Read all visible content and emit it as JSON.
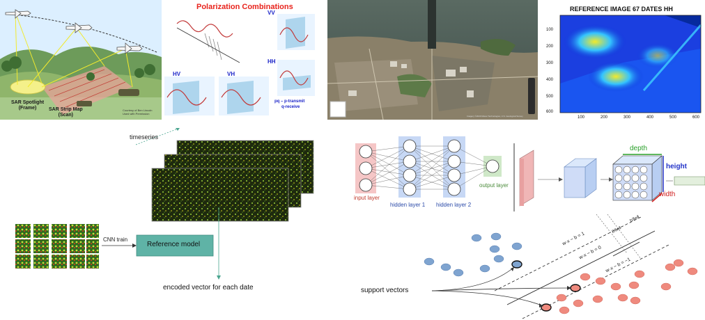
{
  "sar": {
    "spotlight_label_1": "SAR Spotlight",
    "spotlight_label_2": "(Frame)",
    "strip_label_1": "SAR Strip Map",
    "strip_label_2": "(Scan)",
    "credit_1": "Courtesy of Ben Lincoln",
    "credit_2": "Used with Permission"
  },
  "polarization": {
    "title": "Polarization Combinations",
    "labels": [
      "VV",
      "HH",
      "HV",
      "VH"
    ],
    "note_1": "pq – p-transmit",
    "note_2": "q-receive",
    "title_color": "#e8231c",
    "label_color": "#1a23c8"
  },
  "satellite": {
    "attribution": "Imagery ©2020 Maxar Technologies, U.S. Geological Survey"
  },
  "reference": {
    "title": "REFERENCE IMAGE 67 DATES HH",
    "y_ticks": [
      "100",
      "200",
      "300",
      "400",
      "500",
      "600"
    ],
    "x_ticks": [
      "100",
      "200",
      "300",
      "400",
      "500",
      "600"
    ]
  },
  "workflow": {
    "timeseries_label": "timeseries",
    "cnn_train_label": "CNN train",
    "reference_model_label": "Reference model",
    "encoded_vector_label": "encoded vector for each date",
    "model_box_color": "#5fb3a6"
  },
  "network": {
    "input_layer_label": "input layer",
    "hidden_layer_1_label": "hidden layer 1",
    "hidden_layer_2_label": "hidden layer 2",
    "output_layer_label": "output layer",
    "depth_label": "depth",
    "height_label": "height",
    "width_label": "width",
    "input_color": "#f5c6c6",
    "hidden_color": "#c7d8f5",
    "output_color": "#cfe8c8"
  },
  "svm": {
    "support_vectors_label": "support vectors",
    "eq_plus": "w·x − b = 1",
    "eq_zero": "w·x − b = 0",
    "eq_minus": "w·x − b = −1",
    "margin_label": "2/‖w‖",
    "offset_label": "b/‖w‖",
    "class_a_color": "#7fa4d0",
    "class_b_color": "#ef8a7e"
  }
}
